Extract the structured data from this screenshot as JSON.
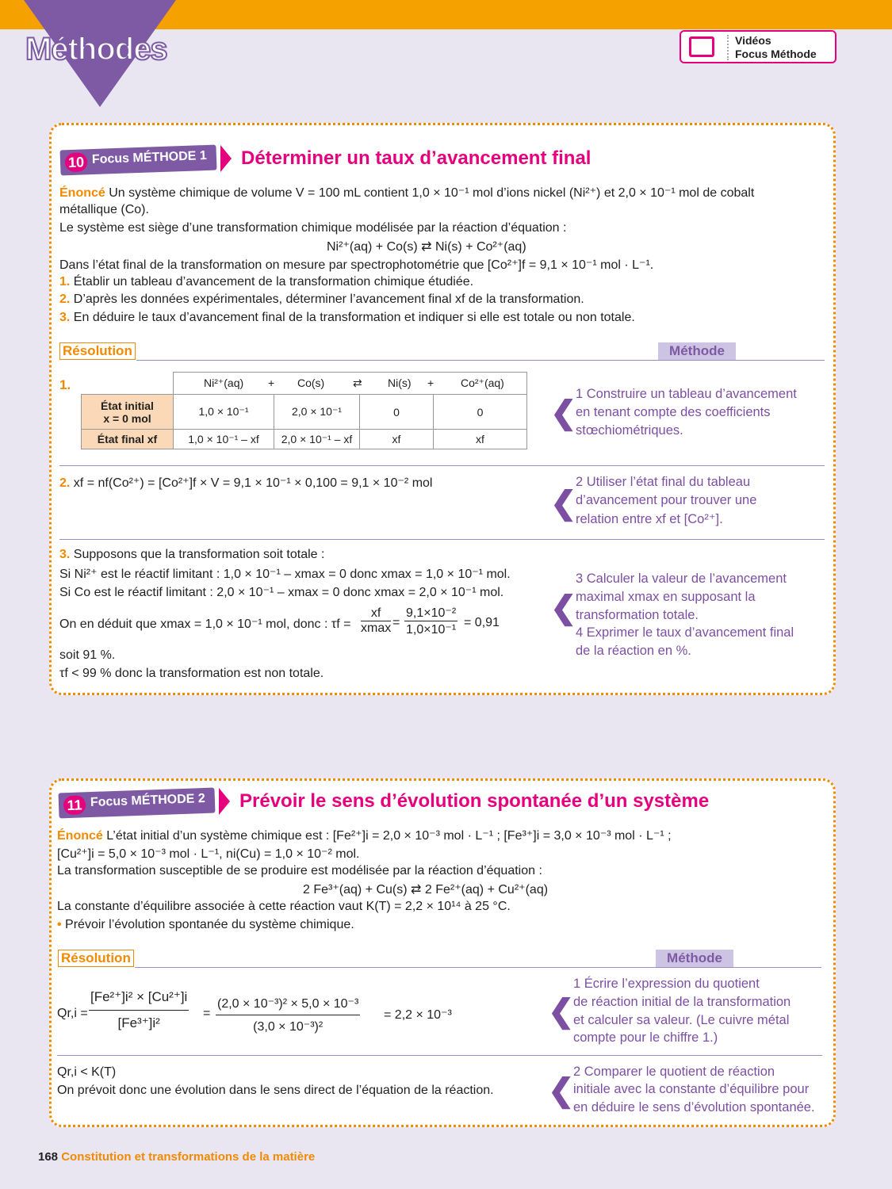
{
  "header": {
    "section": "Méthodes",
    "videos_line1": "Vidéos",
    "videos_line2": "Focus Méthode",
    "accent": "#f5a200",
    "purple": "#7d5aa3",
    "pink": "#e5007e"
  },
  "card1": {
    "badge_num": "10",
    "badge_label": "Focus MÉTHODE 1",
    "title": "Déterminer un taux d’avancement final",
    "enonce_label": "Énoncé",
    "lines": [
      "Un système chimique de volume V = 100 mL contient 1,0 × 10⁻¹ mol d’ions nickel (Ni²⁺) et 2,0 × 10⁻¹ mol de cobalt",
      "métallique (Co).",
      "Le système est siège d’une transformation chimique modélisée par la réaction d’équation :",
      "Ni²⁺(aq) + Co(s) ⇄ Ni(s) + Co²⁺(aq)",
      "Dans l’état final de la transformation on mesure par spectrophotométrie que [Co²⁺]f = 9,1 × 10⁻¹ mol · L⁻¹."
    ],
    "questions": [
      {
        "num": "1.",
        "text": "Établir un tableau d’avancement de la transformation chimique étudiée."
      },
      {
        "num": "2.",
        "text": "D’après les données expérimentales, déterminer l’avancement final xf de la transformation."
      },
      {
        "num": "3.",
        "text": "En déduire le taux d’avancement final de la transformation et indiquer si elle est totale ou non totale."
      }
    ],
    "resolution": "Résolution",
    "methode": "Méthode",
    "table": {
      "header": [
        "Ni²⁺(aq)",
        "+",
        "Co(s)",
        "⇄",
        "Ni(s)",
        "+",
        "Co²⁺(aq)"
      ],
      "rows": [
        {
          "label1": "État initial",
          "label2": "x = 0 mol",
          "cells": [
            "1,0 × 10⁻¹",
            "2,0 × 10⁻¹",
            "0",
            "0"
          ]
        },
        {
          "label1": "État final xf",
          "cells": [
            "1,0 × 10⁻¹ – xf",
            "2,0 × 10⁻¹ – xf",
            "xf",
            "xf"
          ]
        }
      ]
    },
    "r1_num": "1.",
    "r2": {
      "num": "2.",
      "text": "xf = nf(Co²⁺) = [Co²⁺]f × V = 9,1 × 10⁻¹ × 0,100 = 9,1 × 10⁻² mol"
    },
    "r3": {
      "num": "3.",
      "lines": [
        "Supposons que la transformation soit totale :",
        "Si Ni²⁺ est le réactif limitant : 1,0 × 10⁻¹ – xmax = 0 donc xmax = 1,0 × 10⁻¹ mol.",
        "Si Co est le réactif limitant : 2,0 × 10⁻¹ – xmax = 0 donc xmax = 2,0 × 10⁻¹ mol."
      ],
      "deduit": "On en déduit que xmax = 1,0 × 10⁻¹ mol, donc : τf =",
      "f1n": "xf",
      "f1d": "xmax",
      "eq": "=",
      "f2n": "9,1×10⁻²",
      "f2d": "1,0×10⁻¹",
      "result": "= 0,91",
      "tail": [
        "soit 91 %.",
        "τf < 99 % donc la transformation est non totale."
      ]
    },
    "methods": [
      {
        "lines": [
          "1  Construire un tableau d’avancement",
          "en tenant compte des coefficients",
          "stœchiométriques."
        ]
      },
      {
        "lines": [
          "2  Utiliser l’état final du tableau",
          "d’avancement pour trouver une",
          "relation entre xf et [Co²⁺]."
        ]
      },
      {
        "lines": [
          "3  Calculer la valeur de l’avancement",
          "maximal xmax en supposant la",
          "transformation totale.",
          "4  Exprimer le taux d’avancement final",
          "de la réaction en %."
        ]
      }
    ]
  },
  "card2": {
    "badge_num": "11",
    "badge_label": "Focus MÉTHODE 2",
    "title": "Prévoir le sens d’évolution spontanée d’un système",
    "enonce_label": "Énoncé",
    "lines": [
      "L’état initial d’un système chimique est : [Fe²⁺]i = 2,0 × 10⁻³ mol · L⁻¹ ; [Fe³⁺]i = 3,0 × 10⁻³ mol · L⁻¹ ;",
      "[Cu²⁺]i = 5,0 × 10⁻³ mol · L⁻¹, ni(Cu) = 1,0 × 10⁻² mol.",
      "La transformation susceptible de se produire est modélisée par la réaction d’équation :",
      "2 Fe³⁺(aq) + Cu(s) ⇄ 2 Fe²⁺(aq) + Cu²⁺(aq)",
      "La constante d’équilibre associée à cette réaction vaut K(T) = 2,2 × 10¹⁴ à 25 °C."
    ],
    "bullet": "Prévoir l’évolution spontanée du système chimique.",
    "resolution": "Résolution",
    "methode": "Méthode",
    "q": {
      "lhs": "Qr,i =",
      "f1n": "[Fe²⁺]i² × [Cu²⁺]i",
      "f1d": "[Fe³⁺]i²",
      "eq": "=",
      "f2n": "(2,0 × 10⁻³)² × 5,0 × 10⁻³",
      "f2d": "(3,0 × 10⁻³)²",
      "result": "= 2,2 × 10⁻³"
    },
    "concl": [
      "Qr,i < K(T)",
      "On prévoit donc une évolution dans le sens direct de l’équation de la réaction."
    ],
    "methods": [
      {
        "lines": [
          "1  Écrire l’expression du quotient",
          "de réaction initial de la transformation",
          "et calculer sa valeur. (Le cuivre métal",
          "compte pour le chiffre 1.)"
        ]
      },
      {
        "lines": [
          "2  Comparer le quotient de réaction",
          "initiale avec la constante d’équilibre pour",
          "en déduire le sens d’évolution spontanée."
        ]
      }
    ]
  },
  "footer": {
    "page": "168",
    "chapter": "Constitution et transformations de la matière"
  }
}
